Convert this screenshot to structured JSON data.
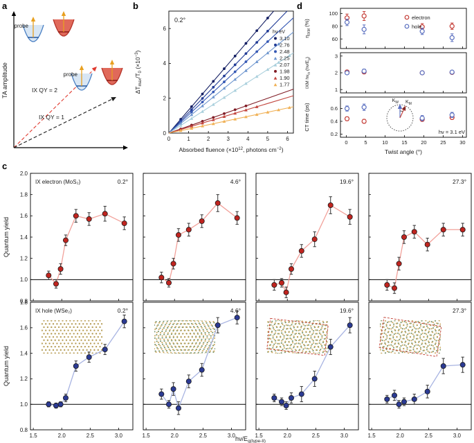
{
  "figure_labels": {
    "a": "a",
    "b": "b",
    "c": "c",
    "d": "d"
  },
  "panel_a": {
    "ylabel": "TA amplitude",
    "probe": "probe",
    "qy2_label": "IX QY = 2",
    "qy1_label": "IX QY = 1",
    "qy2_color": "#e03a2f",
    "qy1_color": "#1a1a1a",
    "probe_color": "#e8a020",
    "band_blue_stroke": "#4a80c4",
    "band_blue_fill": "#d8e6f4",
    "band_red_stroke": "#b5342a",
    "band_red_fill": "#e0695a"
  },
  "chart_data": [
    {
      "id": "b",
      "type": "line",
      "annotation": "0.2°",
      "xlabel": "Absorbed fluence (×10^{12}, photons cm^{−2})",
      "ylabel": "ΔT_{max}/T_{0} (×10^{−3})",
      "xlim": [
        0,
        6.3
      ],
      "ylim": [
        0,
        7
      ],
      "xticks": [
        "0",
        "1",
        "2",
        "3",
        "4",
        "5",
        "6"
      ],
      "yticks": [
        "0",
        "2",
        "4",
        "6"
      ],
      "legend_title": "hν eV",
      "series": [
        {
          "name": "3.10",
          "color": "#141f63",
          "slope": 1.32,
          "xmax": 5.0,
          "marker": "circle"
        },
        {
          "name": "2.76",
          "color": "#223c96",
          "slope": 1.17,
          "xmax": 5.2,
          "marker": "circle"
        },
        {
          "name": "2.48",
          "color": "#3558b4",
          "slope": 1.05,
          "xmax": 5.3,
          "marker": "circle"
        },
        {
          "name": "2.25",
          "color": "#6e96cf",
          "slope": 0.92,
          "xmax": 5.6,
          "marker": "triangle"
        },
        {
          "name": "2.07",
          "color": "#a9cfdc",
          "slope": 0.73,
          "xmax": 6.1,
          "marker": "triangle"
        },
        {
          "name": "1.98",
          "color": "#801c25",
          "slope": 0.4,
          "xmax": 4.3,
          "marker": "circle"
        },
        {
          "name": "1.90",
          "color": "#c2453e",
          "slope": 0.34,
          "xmax": 4.6,
          "marker": "triangle"
        },
        {
          "name": "1.77",
          "color": "#f0b054",
          "slope": 0.24,
          "xmax": 6.1,
          "marker": "triangle"
        }
      ]
    },
    {
      "id": "c",
      "type": "scatter-line",
      "xlabel": "hν/E_{g(type-II)}",
      "ylabel": "Quantum yield",
      "xlim": [
        1.45,
        3.25
      ],
      "xticks": [
        "1.5",
        "2.0",
        "2.5",
        "3.0"
      ],
      "x": [
        1.77,
        1.9,
        1.98,
        2.07,
        2.25,
        2.48,
        2.76,
        3.1
      ],
      "refline": 1.0,
      "angles": [
        "0.2°",
        "4.6°",
        "19.6°",
        "27.3°"
      ],
      "rows": [
        {
          "name": "electron",
          "title": "IX electron (MoS₂)",
          "marker_color": "#c0241f",
          "line_color": "#f2a19a",
          "ylim": [
            0.8,
            2.0
          ],
          "yticks": [
            "0.8",
            "1.0",
            "1.2",
            "1.4",
            "1.6",
            "1.8",
            "2.0"
          ],
          "y": [
            [
              1.04,
              0.96,
              1.1,
              1.37,
              1.6,
              1.57,
              1.62,
              1.53
            ],
            [
              1.02,
              0.97,
              1.15,
              1.42,
              1.47,
              1.55,
              1.72,
              1.58
            ],
            [
              0.95,
              0.97,
              0.88,
              1.1,
              1.27,
              1.38,
              1.7,
              1.59
            ],
            [
              0.95,
              0.92,
              1.15,
              1.4,
              1.45,
              1.33,
              1.47,
              1.47
            ]
          ],
          "yerr": [
            [
              0.04,
              0.04,
              0.05,
              0.05,
              0.06,
              0.06,
              0.07,
              0.06
            ],
            [
              0.05,
              0.04,
              0.05,
              0.06,
              0.06,
              0.06,
              0.08,
              0.06
            ],
            [
              0.05,
              0.04,
              0.05,
              0.05,
              0.06,
              0.07,
              0.08,
              0.07
            ],
            [
              0.05,
              0.05,
              0.06,
              0.06,
              0.06,
              0.06,
              0.06,
              0.06
            ]
          ]
        },
        {
          "name": "hole",
          "title": "IX hole (WSe₂)",
          "marker_color": "#2b3a93",
          "line_color": "#a8b4e2",
          "ylim": [
            0.8,
            1.8
          ],
          "yticks": [
            "0.8",
            "1.0",
            "1.2",
            "1.4",
            "1.6",
            "1.8"
          ],
          "y": [
            [
              1.0,
              0.99,
              1.0,
              1.05,
              1.3,
              1.37,
              1.43,
              1.65
            ],
            [
              1.08,
              1.0,
              1.12,
              0.97,
              1.18,
              1.27,
              1.62,
              1.68
            ],
            [
              1.05,
              1.02,
              0.99,
              1.05,
              1.08,
              1.2,
              1.45,
              1.62
            ],
            [
              1.04,
              1.07,
              1.0,
              1.02,
              1.04,
              1.1,
              1.3,
              1.31
            ]
          ],
          "yerr": [
            [
              0.02,
              0.02,
              0.02,
              0.03,
              0.04,
              0.04,
              0.04,
              0.05
            ],
            [
              0.04,
              0.03,
              0.05,
              0.05,
              0.05,
              0.05,
              0.06,
              0.05
            ],
            [
              0.03,
              0.03,
              0.03,
              0.04,
              0.06,
              0.06,
              0.06,
              0.06
            ],
            [
              0.03,
              0.04,
              0.03,
              0.03,
              0.04,
              0.05,
              0.06,
              0.06
            ]
          ]
        }
      ],
      "insets": [
        {
          "angle": 0.2,
          "dashed": false
        },
        {
          "angle": 4.6,
          "dashed": false
        },
        {
          "angle": 19.6,
          "dashed": true
        },
        {
          "angle": 27.3,
          "dashed": true
        }
      ]
    },
    {
      "id": "d",
      "type": "scatter",
      "xlabel": "Twist angle (°)",
      "xlim": [
        -1.5,
        31
      ],
      "xticks": [
        "0",
        "5",
        "10",
        "15",
        "20",
        "25",
        "30"
      ],
      "x": [
        0.2,
        4.6,
        19.6,
        27.3
      ],
      "series_colors": {
        "electron": "#c43b35",
        "hole": "#5a6fc0"
      },
      "legend": [
        "electron",
        "hole"
      ],
      "subplots": [
        {
          "ylabel": "η_{IXM} (%)",
          "ylim": [
            45,
            108
          ],
          "yticks": [
            "60",
            "80",
            "100"
          ],
          "electron": [
            93,
            96,
            79,
            80
          ],
          "electron_err": [
            6,
            7,
            5,
            5
          ],
          "hole": [
            86,
            75,
            72,
            62
          ],
          "hole_err": [
            5,
            7,
            5,
            6
          ]
        },
        {
          "ylabel": "IXM hν_{th} (hν/E_{g})",
          "ylim": [
            0.8,
            3.2
          ],
          "yticks": [
            "1",
            "2",
            "3"
          ],
          "electron": [
            2.05,
            2.05,
            2.0,
            2.02
          ],
          "electron_err": [
            0.1,
            0.1,
            0.08,
            0.08
          ],
          "hole": [
            2.0,
            2.1,
            2.0,
            2.04
          ],
          "hole_err": [
            0.1,
            0.12,
            0.08,
            0.08
          ]
        },
        {
          "ylabel": "CT time (ps)",
          "ylim": [
            0.15,
            0.78
          ],
          "yticks": [
            "0.2",
            "0.4",
            "0.6"
          ],
          "electron": [
            0.44,
            0.4,
            0.43,
            0.46
          ],
          "electron_err": [
            0.03,
            0.03,
            0.03,
            0.03
          ],
          "hole": [
            0.6,
            0.62,
            0.45,
            0.5
          ],
          "hole_err": [
            0.04,
            0.05,
            0.04,
            0.04
          ],
          "annotation": "hν = 3.1 eV",
          "inset": {
            "kw": "K_{W}",
            "km": "K_{M}",
            "theta": "θ"
          }
        }
      ]
    }
  ]
}
